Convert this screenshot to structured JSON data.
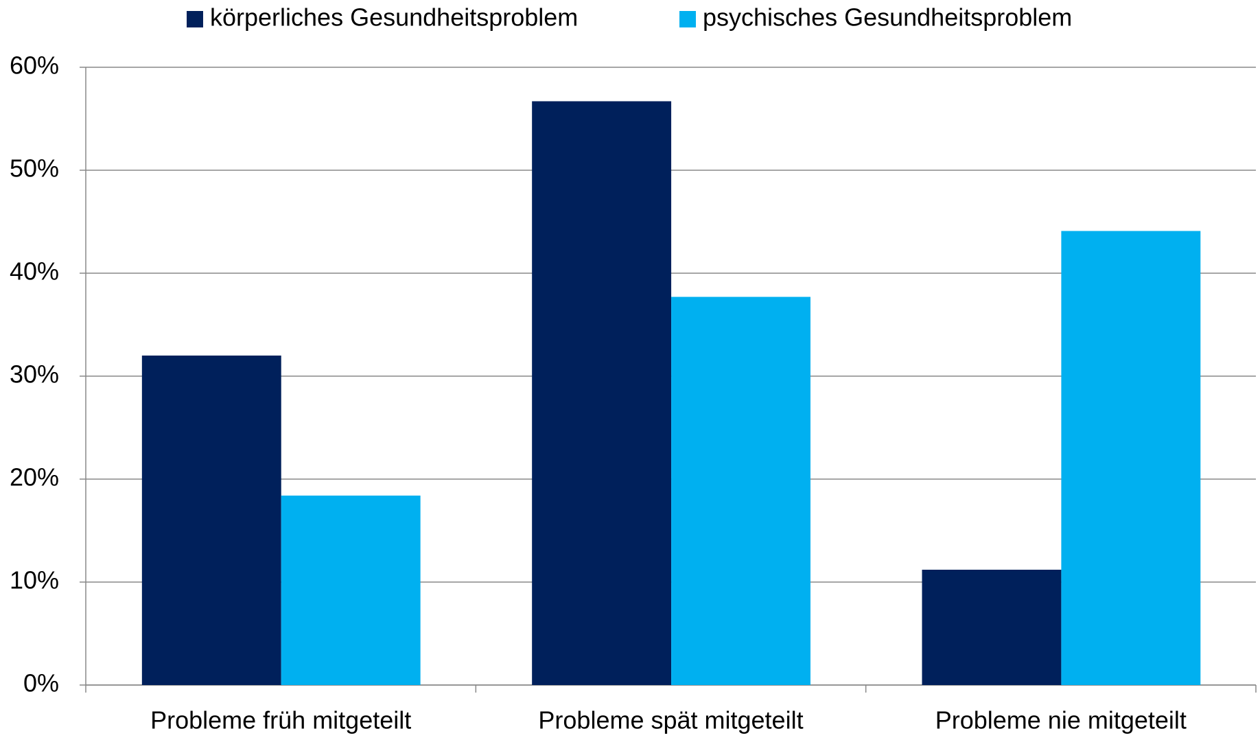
{
  "chart_data": {
    "type": "bar",
    "categories": [
      "Probleme früh mitgeteilt",
      "Probleme spät mitgeteilt",
      "Probleme nie mitgeteilt"
    ],
    "series": [
      {
        "name": "körperliches Gesundheitsproblem",
        "color": "#00205b",
        "values": [
          32.0,
          56.7,
          11.2
        ]
      },
      {
        "name": "psychisches Gesundheitsproblem",
        "color": "#00b0f0",
        "values": [
          18.4,
          37.7,
          44.1
        ]
      }
    ],
    "ylim": [
      0,
      60
    ],
    "yticks": [
      {
        "value": 0,
        "label": "0%"
      },
      {
        "value": 10,
        "label": "10%"
      },
      {
        "value": 20,
        "label": "20%"
      },
      {
        "value": 30,
        "label": "30%"
      },
      {
        "value": 40,
        "label": "40%"
      },
      {
        "value": 50,
        "label": "50%"
      },
      {
        "value": 60,
        "label": "60%"
      }
    ],
    "grid": true,
    "legend": "top"
  }
}
